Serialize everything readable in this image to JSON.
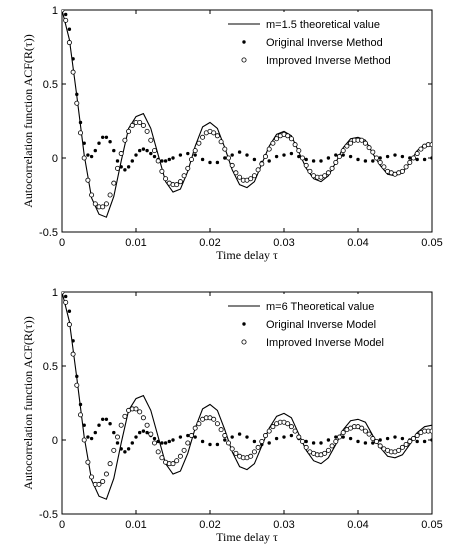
{
  "chart_data": [
    {
      "type": "line",
      "xlabel": "Time delay τ",
      "ylabel": "Autocorrelation function ACF(R(τ))",
      "xlim": [
        0,
        0.05
      ],
      "ylim": [
        -0.5,
        1
      ],
      "xticks": [
        "0",
        "0.01",
        "0.02",
        "0.03",
        "0.04",
        "0.05"
      ],
      "yticks": [
        "-0.5",
        "0",
        "0.5",
        "1"
      ],
      "grid": false,
      "legend_position": "top-right",
      "series": [
        {
          "name": "m=1.5 theoretical value",
          "style": "line",
          "x": [
            0,
            0.001,
            0.002,
            0.003,
            0.004,
            0.005,
            0.006,
            0.007,
            0.008,
            0.009,
            0.01,
            0.011,
            0.012,
            0.013,
            0.014,
            0.015,
            0.016,
            0.017,
            0.018,
            0.019,
            0.02,
            0.021,
            0.022,
            0.023,
            0.024,
            0.025,
            0.026,
            0.027,
            0.028,
            0.029,
            0.03,
            0.031,
            0.032,
            0.033,
            0.034,
            0.035,
            0.036,
            0.037,
            0.038,
            0.039,
            0.04,
            0.041,
            0.042,
            0.043,
            0.044,
            0.045,
            0.046,
            0.047,
            0.048,
            0.049,
            0.05
          ],
          "y": [
            1.0,
            0.8,
            0.42,
            0.02,
            -0.27,
            -0.38,
            -0.4,
            -0.26,
            -0.02,
            0.2,
            0.28,
            0.3,
            0.2,
            0.02,
            -0.16,
            -0.23,
            -0.21,
            -0.09,
            0.08,
            0.21,
            0.24,
            0.2,
            0.07,
            -0.08,
            -0.18,
            -0.2,
            -0.16,
            -0.04,
            0.08,
            0.16,
            0.18,
            0.15,
            0.04,
            -0.07,
            -0.14,
            -0.16,
            -0.12,
            -0.03,
            0.07,
            0.13,
            0.14,
            0.12,
            0.03,
            -0.05,
            -0.11,
            -0.12,
            -0.1,
            -0.03,
            0.05,
            0.09,
            0.1
          ]
        },
        {
          "name": "Original Inverse Method",
          "style": "dot",
          "x": [
            0,
            0.0005,
            0.001,
            0.0015,
            0.002,
            0.0025,
            0.003,
            0.0035,
            0.004,
            0.0045,
            0.005,
            0.0055,
            0.006,
            0.0065,
            0.007,
            0.0075,
            0.008,
            0.0085,
            0.009,
            0.0095,
            0.01,
            0.0105,
            0.011,
            0.0115,
            0.012,
            0.0125,
            0.013,
            0.0135,
            0.014,
            0.0145,
            0.015,
            0.016,
            0.017,
            0.018,
            0.019,
            0.02,
            0.021,
            0.022,
            0.023,
            0.024,
            0.025,
            0.026,
            0.027,
            0.028,
            0.029,
            0.03,
            0.031,
            0.032,
            0.033,
            0.034,
            0.035,
            0.036,
            0.037,
            0.038,
            0.039,
            0.04,
            0.041,
            0.042,
            0.043,
            0.044,
            0.045,
            0.046,
            0.047,
            0.048,
            0.049,
            0.05
          ],
          "y": [
            1.0,
            0.97,
            0.87,
            0.67,
            0.43,
            0.24,
            0.1,
            0.02,
            0.01,
            0.05,
            0.1,
            0.14,
            0.14,
            0.11,
            0.05,
            -0.02,
            -0.06,
            -0.08,
            -0.06,
            -0.02,
            0.02,
            0.05,
            0.06,
            0.05,
            0.03,
            0.01,
            -0.01,
            -0.02,
            -0.02,
            -0.01,
            0.0,
            0.02,
            0.03,
            0.02,
            -0.01,
            -0.03,
            -0.03,
            0.0,
            0.02,
            0.04,
            0.02,
            -0.01,
            -0.03,
            -0.02,
            0.01,
            0.02,
            0.03,
            0.01,
            -0.01,
            -0.02,
            -0.02,
            0.0,
            0.02,
            0.02,
            0.01,
            -0.01,
            -0.02,
            -0.02,
            0.0,
            0.01,
            0.02,
            0.01,
            0.0,
            -0.01,
            -0.01,
            0.0
          ]
        },
        {
          "name": "Improved Inverse Method",
          "style": "circle",
          "x": [
            0,
            0.0005,
            0.001,
            0.0015,
            0.002,
            0.0025,
            0.003,
            0.0035,
            0.004,
            0.0045,
            0.005,
            0.0055,
            0.006,
            0.0065,
            0.007,
            0.0075,
            0.008,
            0.0085,
            0.009,
            0.0095,
            0.01,
            0.0105,
            0.011,
            0.0115,
            0.012,
            0.0125,
            0.013,
            0.0135,
            0.014,
            0.0145,
            0.015,
            0.0155,
            0.016,
            0.0165,
            0.017,
            0.0175,
            0.018,
            0.0185,
            0.019,
            0.0195,
            0.02,
            0.0205,
            0.021,
            0.0215,
            0.022,
            0.0225,
            0.023,
            0.0235,
            0.024,
            0.0245,
            0.025,
            0.0255,
            0.026,
            0.0265,
            0.027,
            0.0275,
            0.028,
            0.0285,
            0.029,
            0.0295,
            0.03,
            0.0305,
            0.031,
            0.0315,
            0.032,
            0.0325,
            0.033,
            0.0335,
            0.034,
            0.0345,
            0.035,
            0.0355,
            0.036,
            0.0365,
            0.037,
            0.0375,
            0.038,
            0.0385,
            0.039,
            0.0395,
            0.04,
            0.0405,
            0.041,
            0.0415,
            0.042,
            0.0425,
            0.043,
            0.0435,
            0.044,
            0.0445,
            0.045,
            0.0455,
            0.046,
            0.0465,
            0.047,
            0.0475,
            0.048,
            0.0485,
            0.049,
            0.0495,
            0.05
          ],
          "y": [
            1.0,
            0.93,
            0.78,
            0.58,
            0.37,
            0.17,
            0.0,
            -0.15,
            -0.25,
            -0.31,
            -0.33,
            -0.33,
            -0.31,
            -0.25,
            -0.17,
            -0.07,
            0.03,
            0.12,
            0.18,
            0.22,
            0.24,
            0.24,
            0.22,
            0.18,
            0.12,
            0.05,
            -0.02,
            -0.09,
            -0.14,
            -0.17,
            -0.18,
            -0.18,
            -0.16,
            -0.12,
            -0.07,
            -0.01,
            0.05,
            0.1,
            0.14,
            0.17,
            0.18,
            0.17,
            0.15,
            0.11,
            0.06,
            0.0,
            -0.05,
            -0.1,
            -0.13,
            -0.15,
            -0.15,
            -0.14,
            -0.12,
            -0.08,
            -0.04,
            0.01,
            0.06,
            0.1,
            0.13,
            0.15,
            0.16,
            0.15,
            0.13,
            0.09,
            0.05,
            0.0,
            -0.05,
            -0.09,
            -0.12,
            -0.13,
            -0.13,
            -0.12,
            -0.1,
            -0.07,
            -0.03,
            0.01,
            0.05,
            0.08,
            0.1,
            0.12,
            0.12,
            0.12,
            0.1,
            0.07,
            0.04,
            0.0,
            -0.03,
            -0.06,
            -0.09,
            -0.1,
            -0.11,
            -0.1,
            -0.09,
            -0.06,
            -0.03,
            0.0,
            0.03,
            0.06,
            0.08,
            0.09,
            0.09
          ]
        }
      ]
    },
    {
      "type": "line",
      "xlabel": "Time delay τ",
      "ylabel": "Autocorrelation function ACF(R(τ))",
      "xlim": [
        0,
        0.05
      ],
      "ylim": [
        -0.5,
        1
      ],
      "xticks": [
        "0",
        "0.01",
        "0.02",
        "0.03",
        "0.04",
        "0.05"
      ],
      "yticks": [
        "-0.5",
        "0",
        "0.5",
        "1"
      ],
      "grid": false,
      "legend_position": "top-right",
      "series": [
        {
          "name": "m=6 Theoretical value",
          "style": "line",
          "x": [
            0,
            0.001,
            0.002,
            0.003,
            0.004,
            0.005,
            0.006,
            0.007,
            0.008,
            0.009,
            0.01,
            0.011,
            0.012,
            0.013,
            0.014,
            0.015,
            0.016,
            0.017,
            0.018,
            0.019,
            0.02,
            0.021,
            0.022,
            0.023,
            0.024,
            0.025,
            0.026,
            0.027,
            0.028,
            0.029,
            0.03,
            0.031,
            0.032,
            0.033,
            0.034,
            0.035,
            0.036,
            0.037,
            0.038,
            0.039,
            0.04,
            0.041,
            0.042,
            0.043,
            0.044,
            0.045,
            0.046,
            0.047,
            0.048,
            0.049,
            0.05
          ],
          "y": [
            1.0,
            0.8,
            0.42,
            0.02,
            -0.27,
            -0.38,
            -0.4,
            -0.26,
            -0.02,
            0.2,
            0.28,
            0.3,
            0.2,
            0.02,
            -0.16,
            -0.23,
            -0.21,
            -0.09,
            0.08,
            0.21,
            0.24,
            0.2,
            0.07,
            -0.08,
            -0.18,
            -0.2,
            -0.16,
            -0.04,
            0.08,
            0.16,
            0.18,
            0.15,
            0.04,
            -0.07,
            -0.14,
            -0.16,
            -0.12,
            -0.03,
            0.07,
            0.13,
            0.14,
            0.12,
            0.03,
            -0.05,
            -0.11,
            -0.12,
            -0.1,
            -0.03,
            0.05,
            0.09,
            0.1
          ]
        },
        {
          "name": "Original Inverse Model",
          "style": "dot",
          "x": [
            0,
            0.0005,
            0.001,
            0.0015,
            0.002,
            0.0025,
            0.003,
            0.0035,
            0.004,
            0.0045,
            0.005,
            0.0055,
            0.006,
            0.0065,
            0.007,
            0.0075,
            0.008,
            0.0085,
            0.009,
            0.0095,
            0.01,
            0.0105,
            0.011,
            0.0115,
            0.012,
            0.0125,
            0.013,
            0.0135,
            0.014,
            0.0145,
            0.015,
            0.016,
            0.017,
            0.018,
            0.019,
            0.02,
            0.021,
            0.022,
            0.023,
            0.024,
            0.025,
            0.026,
            0.027,
            0.028,
            0.029,
            0.03,
            0.031,
            0.032,
            0.033,
            0.034,
            0.035,
            0.036,
            0.037,
            0.038,
            0.039,
            0.04,
            0.041,
            0.042,
            0.043,
            0.044,
            0.045,
            0.046,
            0.047,
            0.048,
            0.049,
            0.05
          ],
          "y": [
            1.0,
            0.97,
            0.87,
            0.67,
            0.43,
            0.24,
            0.1,
            0.02,
            0.01,
            0.05,
            0.1,
            0.14,
            0.14,
            0.11,
            0.05,
            -0.02,
            -0.06,
            -0.08,
            -0.06,
            -0.02,
            0.02,
            0.05,
            0.06,
            0.05,
            0.03,
            0.01,
            -0.01,
            -0.02,
            -0.02,
            -0.01,
            0.0,
            0.02,
            0.03,
            0.02,
            -0.01,
            -0.03,
            -0.03,
            0.0,
            0.02,
            0.04,
            0.02,
            -0.01,
            -0.03,
            -0.02,
            0.01,
            0.02,
            0.03,
            0.01,
            -0.01,
            -0.02,
            -0.02,
            0.0,
            0.02,
            0.02,
            0.01,
            -0.01,
            -0.02,
            -0.02,
            0.0,
            0.01,
            0.02,
            0.01,
            0.0,
            -0.01,
            -0.01,
            0.0
          ]
        },
        {
          "name": "Improved Inverse Model",
          "style": "circle",
          "x": [
            0,
            0.0005,
            0.001,
            0.0015,
            0.002,
            0.0025,
            0.003,
            0.0035,
            0.004,
            0.0045,
            0.005,
            0.0055,
            0.006,
            0.0065,
            0.007,
            0.0075,
            0.008,
            0.0085,
            0.009,
            0.0095,
            0.01,
            0.0105,
            0.011,
            0.0115,
            0.012,
            0.0125,
            0.013,
            0.0135,
            0.014,
            0.0145,
            0.015,
            0.0155,
            0.016,
            0.0165,
            0.017,
            0.0175,
            0.018,
            0.0185,
            0.019,
            0.0195,
            0.02,
            0.0205,
            0.021,
            0.0215,
            0.022,
            0.0225,
            0.023,
            0.0235,
            0.024,
            0.0245,
            0.025,
            0.0255,
            0.026,
            0.0265,
            0.027,
            0.0275,
            0.028,
            0.0285,
            0.029,
            0.0295,
            0.03,
            0.0305,
            0.031,
            0.0315,
            0.032,
            0.0325,
            0.033,
            0.0335,
            0.034,
            0.0345,
            0.035,
            0.0355,
            0.036,
            0.0365,
            0.037,
            0.0375,
            0.038,
            0.0385,
            0.039,
            0.0395,
            0.04,
            0.0405,
            0.041,
            0.0415,
            0.042,
            0.0425,
            0.043,
            0.0435,
            0.044,
            0.0445,
            0.045,
            0.0455,
            0.046,
            0.0465,
            0.047,
            0.0475,
            0.048,
            0.0485,
            0.049,
            0.0495,
            0.05
          ],
          "y": [
            1.0,
            0.93,
            0.78,
            0.58,
            0.37,
            0.17,
            0.0,
            -0.15,
            -0.25,
            -0.3,
            -0.3,
            -0.28,
            -0.23,
            -0.16,
            -0.07,
            0.02,
            0.1,
            0.16,
            0.2,
            0.21,
            0.21,
            0.19,
            0.15,
            0.1,
            0.04,
            -0.02,
            -0.08,
            -0.12,
            -0.15,
            -0.16,
            -0.16,
            -0.14,
            -0.11,
            -0.07,
            -0.02,
            0.03,
            0.08,
            0.11,
            0.14,
            0.15,
            0.15,
            0.14,
            0.11,
            0.07,
            0.03,
            -0.02,
            -0.06,
            -0.09,
            -0.11,
            -0.12,
            -0.12,
            -0.11,
            -0.08,
            -0.05,
            -0.01,
            0.03,
            0.06,
            0.09,
            0.11,
            0.12,
            0.12,
            0.11,
            0.09,
            0.06,
            0.02,
            -0.01,
            -0.05,
            -0.08,
            -0.09,
            -0.1,
            -0.1,
            -0.09,
            -0.07,
            -0.04,
            -0.01,
            0.02,
            0.05,
            0.07,
            0.08,
            0.09,
            0.09,
            0.08,
            0.06,
            0.04,
            0.01,
            -0.01,
            -0.04,
            -0.06,
            -0.07,
            -0.08,
            -0.08,
            -0.07,
            -0.05,
            -0.03,
            -0.01,
            0.01,
            0.03,
            0.05,
            0.06,
            0.06,
            0.06
          ]
        }
      ]
    }
  ]
}
